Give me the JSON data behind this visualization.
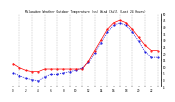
{
  "title": "Milwaukee Weather Outdoor Temperature (vs) Wind Chill (Last 24 Hours)",
  "x": [
    0,
    1,
    2,
    3,
    4,
    5,
    6,
    7,
    8,
    9,
    10,
    11,
    12,
    13,
    14,
    15,
    16,
    17,
    18,
    19,
    20,
    21,
    22,
    23
  ],
  "temp": [
    12,
    9,
    7,
    6,
    6,
    8,
    8,
    8,
    8,
    8,
    8,
    8,
    14,
    22,
    30,
    38,
    43,
    45,
    43,
    38,
    32,
    26,
    22,
    22
  ],
  "wind_chill": [
    5,
    3,
    1,
    0,
    -1,
    2,
    4,
    4,
    5,
    6,
    7,
    9,
    13,
    20,
    28,
    36,
    41,
    43,
    41,
    36,
    29,
    21,
    17,
    17
  ],
  "temp_color": "#ff0000",
  "wind_chill_color": "#0000dd",
  "bg_color": "#ffffff",
  "vgrid_color": "#999999",
  "ylim": [
    -5,
    50
  ],
  "xlim": [
    -0.5,
    23.5
  ],
  "yticks": [
    -5,
    0,
    5,
    10,
    15,
    20,
    25,
    30,
    35,
    40,
    45,
    50
  ],
  "xticks": [
    0,
    1,
    2,
    3,
    4,
    5,
    6,
    7,
    8,
    9,
    10,
    11,
    12,
    13,
    14,
    15,
    16,
    17,
    18,
    19,
    20,
    21,
    22,
    23
  ],
  "vgrid_at": [
    1,
    3,
    5,
    7,
    9,
    11,
    13,
    15,
    17,
    19,
    21,
    23
  ]
}
